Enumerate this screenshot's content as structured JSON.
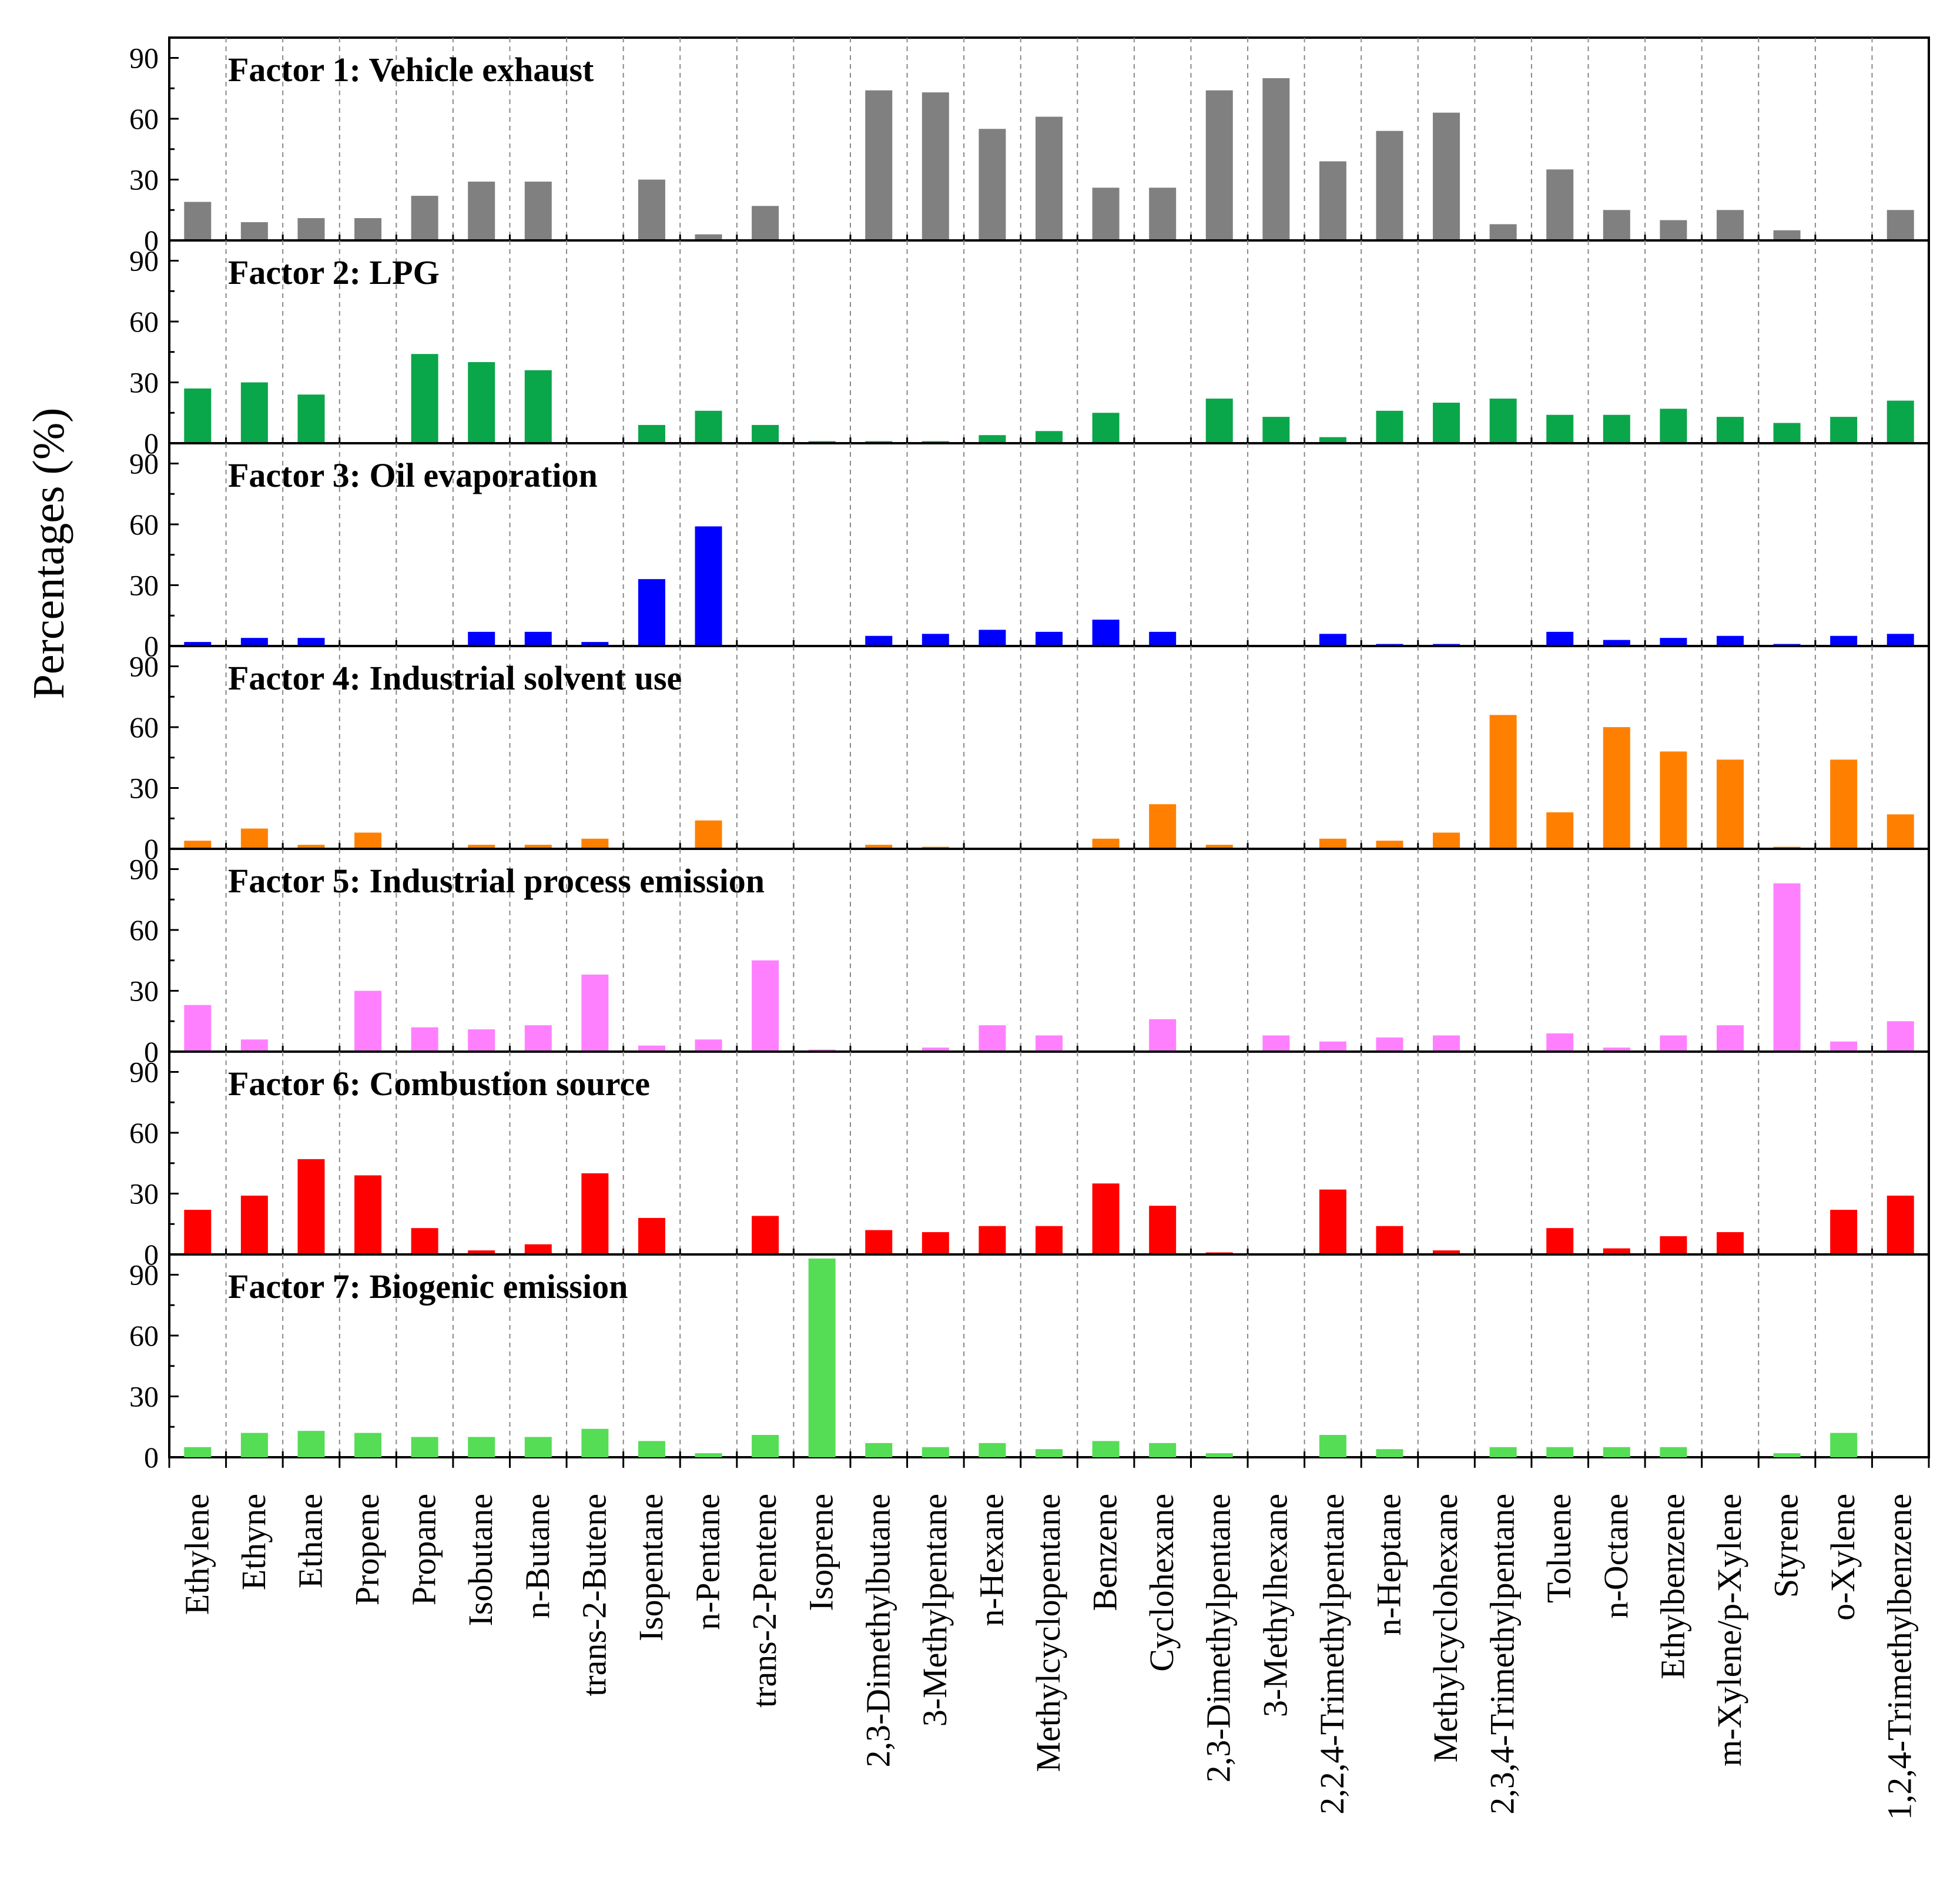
{
  "chart_data": {
    "type": "bar",
    "ylabel": "Percentages (%)",
    "ylim": [
      0,
      100
    ],
    "yticks": [
      "0",
      "30",
      "60",
      "90"
    ],
    "categories": [
      "Ethylene",
      "Ethyne",
      "Ethane",
      "Propene",
      "Propane",
      "Isobutane",
      "n-Butane",
      "trans-2-Butene",
      "Isopentane",
      "n-Pentane",
      "trans-2-Pentene",
      "Isoprene",
      "2,3-Dimethylbutane",
      "3-Methylpentane",
      "n-Hexane",
      "Methylcyclopentane",
      "Benzene",
      "Cyclohexane",
      "2,3-Dimethylpentane",
      "3-Methylhexane",
      "2,2,4-Trimethylpentane",
      "n-Heptane",
      "Methylcyclohexane",
      "2,3,4-Trimethylpentane",
      "Toluene",
      "n-Octane",
      "Ethylbenzene",
      "m-Xylene/p-Xylene",
      "Styrene",
      "o-Xylene",
      "1,2,4-Trimethylbenzene"
    ],
    "series": [
      {
        "name": "Factor 1: Vehicle exhaust",
        "color": "#808080",
        "values": [
          19,
          9,
          11,
          11,
          22,
          29,
          29,
          0,
          30,
          3,
          17,
          0,
          74,
          73,
          55,
          61,
          26,
          26,
          74,
          80,
          39,
          54,
          63,
          8,
          35,
          15,
          10,
          15,
          5,
          0,
          15
        ]
      },
      {
        "name": "Factor 2: LPG",
        "color": "#0aa64a",
        "values": [
          27,
          30,
          24,
          0,
          44,
          40,
          36,
          0,
          9,
          16,
          9,
          1,
          1,
          1,
          4,
          6,
          15,
          0,
          22,
          13,
          3,
          16,
          20,
          22,
          14,
          14,
          17,
          13,
          10,
          13,
          21
        ]
      },
      {
        "name": "Factor 3: Oil evaporation",
        "color": "#0000ff",
        "values": [
          2,
          4,
          4,
          0,
          0,
          7,
          7,
          2,
          33,
          59,
          0,
          0,
          5,
          6,
          8,
          7,
          13,
          7,
          0,
          0,
          6,
          1,
          1,
          0,
          7,
          3,
          4,
          5,
          1,
          5,
          6
        ]
      },
      {
        "name": "Factor 4: Industrial solvent use",
        "color": "#ff8000",
        "values": [
          4,
          10,
          2,
          8,
          0,
          2,
          2,
          5,
          0,
          14,
          0,
          0,
          2,
          1,
          0,
          0,
          5,
          22,
          2,
          0,
          5,
          4,
          8,
          66,
          18,
          60,
          48,
          44,
          1,
          44,
          17
        ]
      },
      {
        "name": "Factor 5: Industrial process emission",
        "color": "#ff80ff",
        "values": [
          23,
          6,
          0,
          30,
          12,
          11,
          13,
          38,
          3,
          6,
          45,
          1,
          0,
          2,
          13,
          8,
          0,
          16,
          0,
          8,
          5,
          7,
          8,
          0,
          9,
          2,
          8,
          13,
          83,
          5,
          15
        ]
      },
      {
        "name": "Factor 6: Combustion source",
        "color": "#ff0000",
        "values": [
          22,
          29,
          47,
          39,
          13,
          2,
          5,
          40,
          18,
          0,
          19,
          0,
          12,
          11,
          14,
          14,
          35,
          24,
          1,
          0,
          32,
          14,
          2,
          0,
          13,
          3,
          9,
          11,
          0,
          22,
          29
        ]
      },
      {
        "name": "Factor 7: Biogenic emission",
        "color": "#55dd55",
        "values": [
          5,
          12,
          13,
          12,
          10,
          10,
          10,
          14,
          8,
          2,
          11,
          98,
          7,
          5,
          7,
          4,
          8,
          7,
          2,
          0,
          11,
          4,
          0,
          5,
          5,
          5,
          5,
          0,
          2,
          12,
          0
        ]
      }
    ]
  }
}
